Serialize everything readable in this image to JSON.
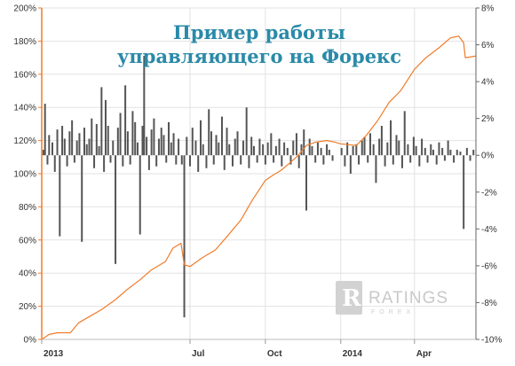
{
  "chart_data": {
    "type": "bar+line",
    "title_lines": [
      "Пример работы",
      "управляющего на Форекс"
    ],
    "left_axis": {
      "ticks": [
        "0%",
        "20%",
        "40%",
        "60%",
        "80%",
        "100%",
        "120%",
        "140%",
        "160%",
        "180%",
        "200%"
      ],
      "ylim": [
        0,
        200
      ],
      "color": "#f07c2a"
    },
    "right_axis": {
      "ticks": [
        "-10%",
        "-8%",
        "-6%",
        "-4%",
        "-2%",
        "0%",
        "2%",
        "4%",
        "6%",
        "8%"
      ],
      "ylim": [
        -10,
        8
      ],
      "color": "#555555"
    },
    "x_axis": {
      "range": [
        "2013-01-01",
        "2014-06-15"
      ],
      "ticks": [
        {
          "label": "2013",
          "date": "2013-01-01"
        },
        {
          "label": "Jul",
          "date": "2013-07-01"
        },
        {
          "label": "Oct",
          "date": "2013-10-01"
        },
        {
          "label": "2014",
          "date": "2014-01-01"
        },
        {
          "label": "Apr",
          "date": "2014-04-01"
        }
      ]
    },
    "series": [
      {
        "type": "line",
        "axis": "left",
        "color": "#f07c2a",
        "points": [
          [
            "2013-01-01",
            0
          ],
          [
            "2013-01-10",
            3
          ],
          [
            "2013-01-20",
            4
          ],
          [
            "2013-02-05",
            4
          ],
          [
            "2013-02-15",
            10
          ],
          [
            "2013-03-01",
            14
          ],
          [
            "2013-03-15",
            18
          ],
          [
            "2013-04-01",
            24
          ],
          [
            "2013-04-15",
            30
          ],
          [
            "2013-05-01",
            36
          ],
          [
            "2013-05-15",
            42
          ],
          [
            "2013-06-01",
            47
          ],
          [
            "2013-06-10",
            55
          ],
          [
            "2013-06-20",
            58
          ],
          [
            "2013-06-24",
            45
          ],
          [
            "2013-07-01",
            44
          ],
          [
            "2013-07-15",
            49
          ],
          [
            "2013-08-01",
            54
          ],
          [
            "2013-08-15",
            62
          ],
          [
            "2013-09-01",
            72
          ],
          [
            "2013-09-15",
            84
          ],
          [
            "2013-10-01",
            96
          ],
          [
            "2013-10-10",
            99
          ],
          [
            "2013-10-20",
            102
          ],
          [
            "2013-11-01",
            107
          ],
          [
            "2013-11-10",
            111
          ],
          [
            "2013-11-20",
            117
          ],
          [
            "2013-12-01",
            119
          ],
          [
            "2013-12-15",
            120
          ],
          [
            "2013-12-25",
            119
          ],
          [
            "2014-01-01",
            118
          ],
          [
            "2014-01-20",
            117
          ],
          [
            "2014-02-01",
            123
          ],
          [
            "2014-02-15",
            132
          ],
          [
            "2014-03-01",
            143
          ],
          [
            "2014-03-15",
            150
          ],
          [
            "2014-04-01",
            163
          ],
          [
            "2014-04-15",
            170
          ],
          [
            "2014-05-01",
            176
          ],
          [
            "2014-05-15",
            182
          ],
          [
            "2014-05-25",
            183
          ],
          [
            "2014-05-31",
            179
          ],
          [
            "2014-06-02",
            170
          ],
          [
            "2014-06-15",
            171
          ]
        ]
      },
      {
        "type": "bar",
        "axis": "right",
        "color": "#555555",
        "points": [
          [
            "2013-01-03",
            0.3
          ],
          [
            "2013-01-05",
            2.8
          ],
          [
            "2013-01-08",
            -0.5
          ],
          [
            "2013-01-10",
            1.1
          ],
          [
            "2013-01-14",
            0.7
          ],
          [
            "2013-01-17",
            -0.9
          ],
          [
            "2013-01-20",
            1.4
          ],
          [
            "2013-01-23",
            -4.4
          ],
          [
            "2013-01-26",
            1.6
          ],
          [
            "2013-01-29",
            0.9
          ],
          [
            "2013-02-01",
            -0.6
          ],
          [
            "2013-02-04",
            1.3
          ],
          [
            "2013-02-07",
            1.9
          ],
          [
            "2013-02-10",
            -0.4
          ],
          [
            "2013-02-13",
            0.8
          ],
          [
            "2013-02-16",
            1.2
          ],
          [
            "2013-02-19",
            -4.7
          ],
          [
            "2013-02-22",
            1.5
          ],
          [
            "2013-02-25",
            0.6
          ],
          [
            "2013-02-28",
            0.9
          ],
          [
            "2013-03-03",
            2.0
          ],
          [
            "2013-03-06",
            -0.7
          ],
          [
            "2013-03-09",
            1.7
          ],
          [
            "2013-03-12",
            0.5
          ],
          [
            "2013-03-15",
            3.7
          ],
          [
            "2013-03-18",
            -0.9
          ],
          [
            "2013-03-20",
            3.0
          ],
          [
            "2013-03-23",
            1.6
          ],
          [
            "2013-03-26",
            -0.4
          ],
          [
            "2013-03-29",
            0.8
          ],
          [
            "2013-04-01",
            -5.9
          ],
          [
            "2013-04-04",
            1.5
          ],
          [
            "2013-04-07",
            2.3
          ],
          [
            "2013-04-10",
            -0.6
          ],
          [
            "2013-04-13",
            3.8
          ],
          [
            "2013-04-16",
            1.3
          ],
          [
            "2013-04-19",
            -0.5
          ],
          [
            "2013-04-22",
            2.4
          ],
          [
            "2013-04-25",
            1.8
          ],
          [
            "2013-04-28",
            0.7
          ],
          [
            "2013-05-01",
            -4.3
          ],
          [
            "2013-05-04",
            1.6
          ],
          [
            "2013-05-06",
            5.4
          ],
          [
            "2013-05-09",
            1.0
          ],
          [
            "2013-05-12",
            -0.8
          ],
          [
            "2013-05-15",
            1.4
          ],
          [
            "2013-05-18",
            2.0
          ],
          [
            "2013-05-21",
            -0.6
          ],
          [
            "2013-05-24",
            0.9
          ],
          [
            "2013-05-27",
            1.5
          ],
          [
            "2013-05-30",
            1.1
          ],
          [
            "2013-06-02",
            -0.4
          ],
          [
            "2013-06-05",
            1.8
          ],
          [
            "2013-06-08",
            0.7
          ],
          [
            "2013-06-11",
            1.2
          ],
          [
            "2013-06-14",
            -0.5
          ],
          [
            "2013-06-17",
            0.9
          ],
          [
            "2013-06-21",
            -0.5
          ],
          [
            "2013-06-24",
            -8.8
          ],
          [
            "2013-06-27",
            1.0
          ],
          [
            "2013-07-01",
            -0.6
          ],
          [
            "2013-07-04",
            1.5
          ],
          [
            "2013-07-08",
            0.8
          ],
          [
            "2013-07-11",
            -0.9
          ],
          [
            "2013-07-14",
            1.9
          ],
          [
            "2013-07-17",
            0.6
          ],
          [
            "2013-07-21",
            -0.7
          ],
          [
            "2013-07-24",
            2.5
          ],
          [
            "2013-07-27",
            1.3
          ],
          [
            "2013-07-30",
            -0.5
          ],
          [
            "2013-08-02",
            1.1
          ],
          [
            "2013-08-05",
            0.7
          ],
          [
            "2013-08-09",
            2.1
          ],
          [
            "2013-08-12",
            -0.8
          ],
          [
            "2013-08-15",
            1.5
          ],
          [
            "2013-08-18",
            0.6
          ],
          [
            "2013-08-22",
            -0.6
          ],
          [
            "2013-08-25",
            0.9
          ],
          [
            "2013-08-28",
            1.3
          ],
          [
            "2013-09-01",
            -0.5
          ],
          [
            "2013-09-04",
            0.8
          ],
          [
            "2013-09-08",
            2.6
          ],
          [
            "2013-09-11",
            -0.7
          ],
          [
            "2013-09-14",
            1.0
          ],
          [
            "2013-09-17",
            0.5
          ],
          [
            "2013-09-21",
            -0.4
          ],
          [
            "2013-09-24",
            0.9
          ],
          [
            "2013-09-28",
            0.6
          ],
          [
            "2013-10-01",
            -0.5
          ],
          [
            "2013-10-04",
            0.7
          ],
          [
            "2013-10-08",
            1.2
          ],
          [
            "2013-10-11",
            -0.4
          ],
          [
            "2013-10-14",
            0.5
          ],
          [
            "2013-10-18",
            0.9
          ],
          [
            "2013-10-21",
            -0.6
          ],
          [
            "2013-10-24",
            0.7
          ],
          [
            "2013-10-28",
            0.4
          ],
          [
            "2013-11-01",
            -0.5
          ],
          [
            "2013-11-04",
            0.8
          ],
          [
            "2013-11-08",
            1.2
          ],
          [
            "2013-11-11",
            -0.7
          ],
          [
            "2013-11-14",
            0.6
          ],
          [
            "2013-11-17",
            1.4
          ],
          [
            "2013-11-20",
            -3.0
          ],
          [
            "2013-11-24",
            0.9
          ],
          [
            "2013-11-27",
            0.5
          ],
          [
            "2013-12-01",
            -0.4
          ],
          [
            "2013-12-04",
            0.7
          ],
          [
            "2013-12-08",
            0.4
          ],
          [
            "2013-12-11",
            -0.5
          ],
          [
            "2013-12-15",
            0.6
          ],
          [
            "2013-12-18",
            0.3
          ],
          [
            "2013-12-22",
            -0.3
          ],
          [
            "2014-01-02",
            0.4
          ],
          [
            "2014-01-06",
            -0.6
          ],
          [
            "2014-01-09",
            0.7
          ],
          [
            "2014-01-13",
            -1.0
          ],
          [
            "2014-01-16",
            0.5
          ],
          [
            "2014-01-20",
            0.6
          ],
          [
            "2014-01-23",
            -0.5
          ],
          [
            "2014-01-27",
            0.8
          ],
          [
            "2014-01-30",
            1.0
          ],
          [
            "2014-02-03",
            -0.4
          ],
          [
            "2014-02-06",
            1.2
          ],
          [
            "2014-02-10",
            0.6
          ],
          [
            "2014-02-13",
            -1.5
          ],
          [
            "2014-02-17",
            0.9
          ],
          [
            "2014-02-20",
            1.6
          ],
          [
            "2014-02-24",
            -0.6
          ],
          [
            "2014-02-27",
            0.7
          ],
          [
            "2014-03-03",
            1.9
          ],
          [
            "2014-03-06",
            -0.5
          ],
          [
            "2014-03-10",
            1.1
          ],
          [
            "2014-03-13",
            0.8
          ],
          [
            "2014-03-17",
            -0.7
          ],
          [
            "2014-03-20",
            2.4
          ],
          [
            "2014-03-24",
            0.6
          ],
          [
            "2014-03-27",
            -0.4
          ],
          [
            "2014-03-31",
            1.0
          ],
          [
            "2014-04-03",
            0.5
          ],
          [
            "2014-04-07",
            -0.6
          ],
          [
            "2014-04-10",
            0.9
          ],
          [
            "2014-04-14",
            0.4
          ],
          [
            "2014-04-17",
            -0.4
          ],
          [
            "2014-04-21",
            0.6
          ],
          [
            "2014-04-24",
            0.3
          ],
          [
            "2014-04-28",
            -0.5
          ],
          [
            "2014-05-01",
            0.7
          ],
          [
            "2014-05-05",
            0.4
          ],
          [
            "2014-05-08",
            -0.3
          ],
          [
            "2014-05-12",
            0.8
          ],
          [
            "2014-05-15",
            0.3
          ],
          [
            "2014-05-19",
            -0.4
          ],
          [
            "2014-05-23",
            0.3
          ],
          [
            "2014-05-27",
            0.2
          ],
          [
            "2014-05-31",
            -4.0
          ],
          [
            "2014-06-04",
            0.4
          ],
          [
            "2014-06-08",
            -0.3
          ],
          [
            "2014-06-12",
            0.3
          ]
        ]
      }
    ],
    "grid": {
      "horizontal": true,
      "vertical": true
    }
  },
  "watermark": {
    "text": "RATINGS",
    "subtext": "FOREX",
    "logo_letter": "R"
  }
}
